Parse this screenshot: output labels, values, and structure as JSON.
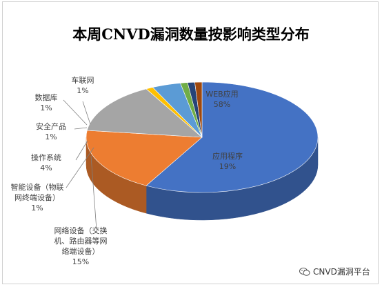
{
  "chart_data": {
    "type": "pie",
    "title": "本周CNVD漏洞数量按影响类型分布",
    "slices": [
      {
        "name": "WEB应用",
        "label": [
          "WEB应用"
        ],
        "pct_label": "58%",
        "value": 58,
        "color": "#4472c4"
      },
      {
        "name": "应用程序",
        "label": [
          "应用程序"
        ],
        "pct_label": "19%",
        "value": 19,
        "color": "#ed7d31"
      },
      {
        "name": "网络设备（交换机、路由器等网络端设备）",
        "label": [
          "网络设备（交换",
          "机、路由器等网",
          "络端设备）"
        ],
        "pct_label": "15%",
        "value": 15,
        "color": "#a5a5a5"
      },
      {
        "name": "智能设备（物联网终端设备）",
        "label": [
          "智能设备（物联",
          "网终端设备）"
        ],
        "pct_label": "1%",
        "value": 1,
        "color": "#ffc000"
      },
      {
        "name": "操作系统",
        "label": [
          "操作系统"
        ],
        "pct_label": "4%",
        "value": 4,
        "color": "#5b9bd5"
      },
      {
        "name": "安全产品",
        "label": [
          "安全产品"
        ],
        "pct_label": "1%",
        "value": 1,
        "color": "#70ad47"
      },
      {
        "name": "数据库",
        "label": [
          "数据库"
        ],
        "pct_label": "1%",
        "value": 1,
        "color": "#264478"
      },
      {
        "name": "车联网",
        "label": [
          "车联网"
        ],
        "pct_label": "1%",
        "value": 1,
        "color": "#9e480e"
      }
    ]
  },
  "watermark": {
    "text": "CNVD漏洞平台",
    "icon": "wechat-icon"
  }
}
